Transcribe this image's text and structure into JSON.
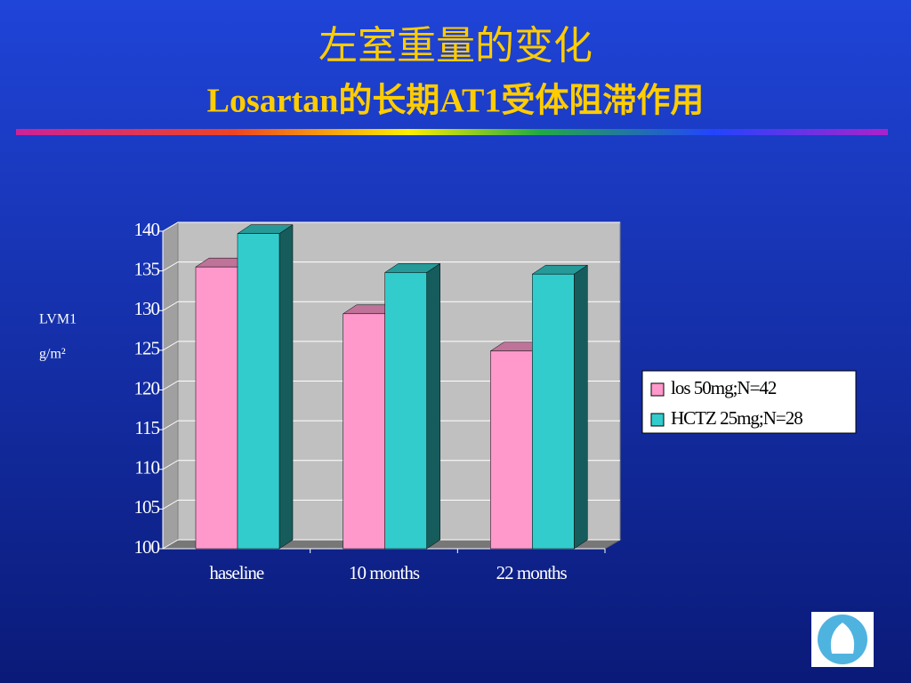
{
  "chart_data": {
    "type": "bar3d",
    "title": "左室重量的变化",
    "subtitle": "Losartan的长期AT1受体阻滞作用",
    "ylabel": [
      "LVM1",
      "g/m²"
    ],
    "categories": [
      "haseline",
      "10 months",
      "22 months"
    ],
    "series": [
      {
        "name": "los 50mg;N=42",
        "color": "#ff99cc",
        "values": [
          135.5,
          129.6,
          124.9
        ]
      },
      {
        "name": "HCTZ 25mg;N=28",
        "color": "#33cccc",
        "values": [
          139.7,
          134.8,
          134.6
        ]
      }
    ],
    "ylim": [
      100,
      140
    ],
    "yticks": [
      100,
      105,
      110,
      115,
      120,
      125,
      130,
      135,
      140
    ],
    "grid": true,
    "legend": "right"
  }
}
